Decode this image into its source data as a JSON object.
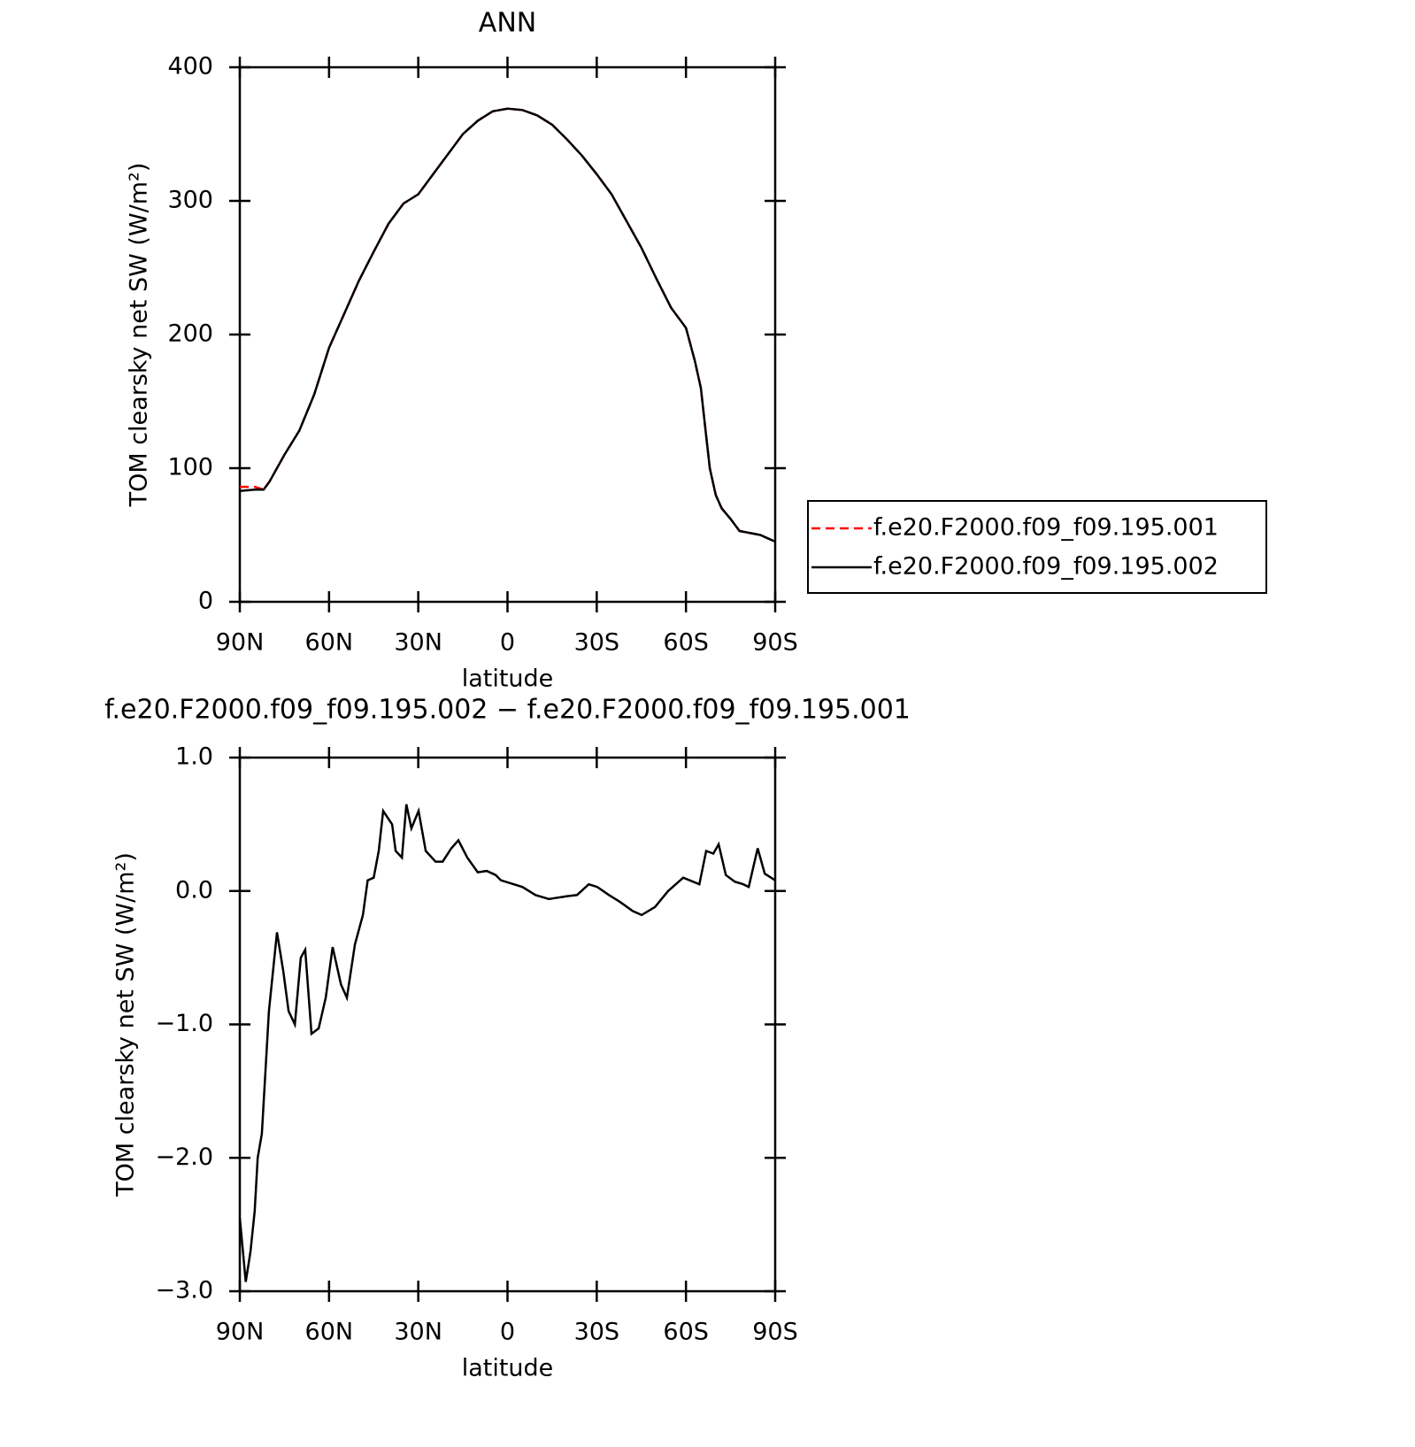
{
  "chart_data": [
    {
      "type": "line",
      "title": "ANN",
      "x_label": "latitude",
      "y_label": "TOM clearsky net SW (W/m²)",
      "x": [
        90,
        85,
        82,
        80,
        75,
        70,
        65,
        60,
        55,
        50,
        45,
        40,
        35,
        30,
        25,
        20,
        15,
        10,
        5,
        0,
        -5,
        -10,
        -15,
        -20,
        -25,
        -30,
        -35,
        -40,
        -45,
        -50,
        -55,
        -60,
        -63,
        -65,
        -67,
        -68,
        -70,
        -72,
        -75,
        -78,
        -85,
        -90
      ],
      "series": [
        {
          "name": "f.e20.F2000.f09_f09.195.001",
          "color": "#ff0000",
          "dash": true,
          "values": [
            86,
            86,
            84,
            90,
            110,
            128,
            155,
            190,
            215,
            240,
            262,
            283,
            298,
            305,
            320,
            335,
            350,
            360,
            367,
            369,
            368,
            364,
            357,
            346,
            334,
            320,
            305,
            285,
            265,
            242,
            220,
            205,
            180,
            160,
            120,
            100,
            80,
            70,
            62,
            53,
            50,
            45
          ]
        },
        {
          "name": "f.e20.F2000.f09_f09.195.002",
          "color": "#000000",
          "dash": false,
          "values": [
            83,
            84,
            84,
            90,
            110,
            128,
            155,
            190,
            215,
            240,
            262,
            283,
            298,
            305,
            320,
            335,
            350,
            360,
            367,
            369,
            368,
            364,
            357,
            346,
            334,
            320,
            305,
            285,
            265,
            242,
            220,
            205,
            180,
            160,
            120,
            100,
            80,
            70,
            62,
            53,
            50,
            45
          ]
        }
      ],
      "xlim": [
        90,
        -90
      ],
      "xticks": [
        {
          "value": 90,
          "label": "90N"
        },
        {
          "value": 60,
          "label": "60N"
        },
        {
          "value": 30,
          "label": "30N"
        },
        0,
        {
          "value": -30,
          "label": "30S"
        },
        {
          "value": -60,
          "label": "60S"
        },
        {
          "value": -90,
          "label": "90S"
        }
      ],
      "ylim": [
        0,
        400
      ],
      "yticks": [
        0,
        100,
        200,
        300,
        400
      ],
      "legend": "right"
    },
    {
      "type": "line",
      "title": "f.e20.F2000.f09_f09.195.002 − f.e20.F2000.f09_f09.195.001",
      "x_label": "latitude",
      "y_label": "TOM clearsky net SW (W/m²)",
      "x": [
        90,
        88,
        86.4,
        85,
        84,
        82.6,
        80.2,
        77.5,
        75.4,
        73.6,
        71.5,
        69.5,
        68,
        65.9,
        63.5,
        61.1,
        58.8,
        56,
        54,
        51.3,
        48.6,
        47,
        45,
        43.3,
        41.8,
        38.8,
        37.6,
        35.5,
        34,
        32.3,
        29.9,
        27.5,
        24.2,
        21.8,
        18.9,
        16.5,
        13.5,
        10,
        7,
        4,
        2.2,
        -5,
        -9.4,
        -13.9,
        -19.8,
        -23.4,
        -27.3,
        -30.2,
        -34.1,
        -37.7,
        -42.1,
        -45.1,
        -49.6,
        -54,
        -59.1,
        -64.5,
        -66.8,
        -69.2,
        -71,
        -73.4,
        -76.4,
        -79.3,
        -81.1,
        -84.1,
        -86.5,
        -90
      ],
      "series": [
        {
          "color": "#000000",
          "dash": false,
          "values": [
            -2.45,
            -2.93,
            -2.7,
            -2.4,
            -2.0,
            -1.82,
            -0.9,
            -0.31,
            -0.6,
            -0.9,
            -1.0,
            -0.5,
            -0.44,
            -1.07,
            -1.03,
            -0.8,
            -0.42,
            -0.7,
            -0.8,
            -0.4,
            -0.18,
            0.08,
            0.1,
            0.3,
            0.6,
            0.5,
            0.3,
            0.25,
            0.65,
            0.47,
            0.6,
            0.3,
            0.22,
            0.22,
            0.32,
            0.38,
            0.25,
            0.14,
            0.15,
            0.12,
            0.08,
            0.03,
            -0.03,
            -0.06,
            -0.04,
            -0.03,
            0.05,
            0.03,
            -0.03,
            -0.08,
            -0.15,
            -0.18,
            -0.12,
            0.0,
            0.1,
            0.05,
            0.3,
            0.28,
            0.35,
            0.12,
            0.07,
            0.05,
            0.03,
            0.32,
            0.13,
            0.08
          ]
        }
      ],
      "xlim": [
        90,
        -90
      ],
      "xticks": [
        {
          "value": 90,
          "label": "90N"
        },
        {
          "value": 60,
          "label": "60N"
        },
        {
          "value": 30,
          "label": "30N"
        },
        0,
        {
          "value": -30,
          "label": "30S"
        },
        {
          "value": -60,
          "label": "60S"
        },
        {
          "value": -90,
          "label": "90S"
        }
      ],
      "ylim": [
        -3,
        1
      ],
      "yticks": [
        {
          "value": -3,
          "label": "−3.0"
        },
        {
          "value": -2,
          "label": "−2.0"
        },
        {
          "value": -1,
          "label": "−1.0"
        },
        {
          "value": 0,
          "label": "0.0"
        },
        {
          "value": 1,
          "label": "1.0"
        }
      ]
    }
  ]
}
